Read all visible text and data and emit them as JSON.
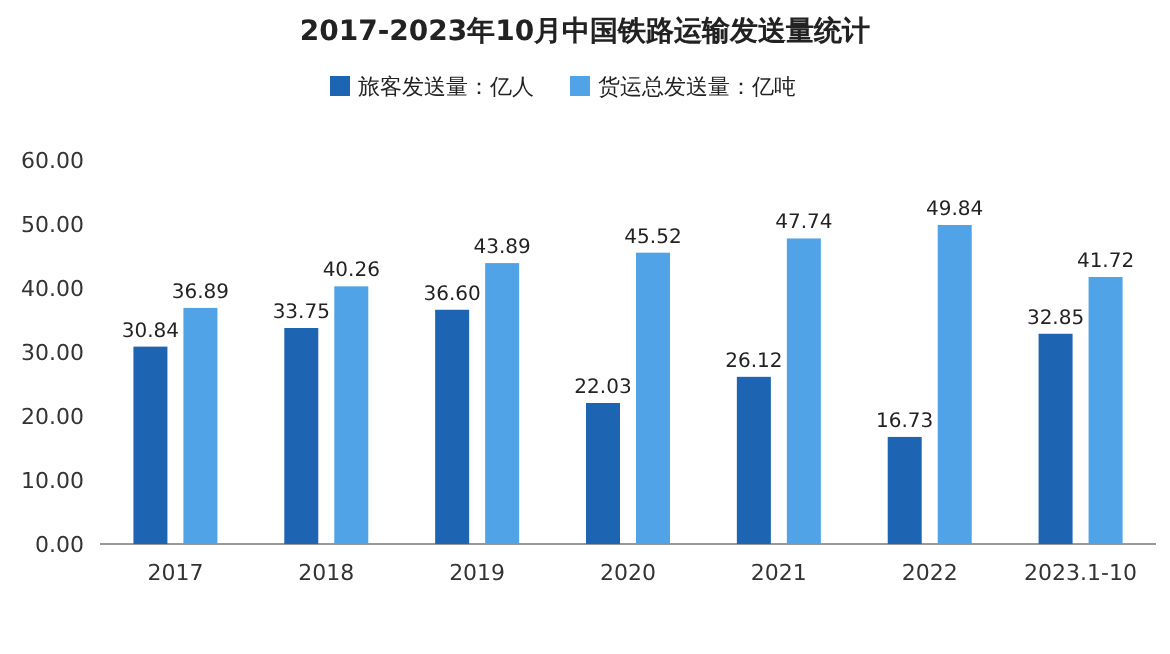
{
  "chart_data": {
    "type": "bar",
    "title": "2017-2023年10月中国铁路运输发送量统计",
    "categories": [
      "2017",
      "2018",
      "2019",
      "2020",
      "2021",
      "2022",
      "2023.1-10"
    ],
    "series": [
      {
        "name": "旅客发送量：亿人",
        "color": "#1d65b2",
        "values": [
          30.84,
          33.75,
          36.6,
          22.03,
          26.12,
          16.73,
          32.85
        ],
        "value_labels": [
          "30.84",
          "33.75",
          "36.60",
          "22.03",
          "26.12",
          "16.73",
          "32.85"
        ]
      },
      {
        "name": "货运总发送量：亿吨",
        "color": "#4fa3e6",
        "values": [
          36.89,
          40.26,
          43.89,
          45.52,
          47.74,
          49.84,
          41.72
        ],
        "value_labels": [
          "36.89",
          "40.26",
          "43.89",
          "45.52",
          "47.74",
          "49.84",
          "41.72"
        ]
      }
    ],
    "ylim": [
      0,
      60
    ],
    "yticks": [
      {
        "value": 0,
        "label": "0.00"
      },
      {
        "value": 10,
        "label": "10.00"
      },
      {
        "value": 20,
        "label": "20.00"
      },
      {
        "value": 30,
        "label": "30.00"
      },
      {
        "value": 40,
        "label": "40.00"
      },
      {
        "value": 50,
        "label": "50.00"
      },
      {
        "value": 60,
        "label": "60.00"
      }
    ],
    "legend": "top",
    "grid": false
  }
}
